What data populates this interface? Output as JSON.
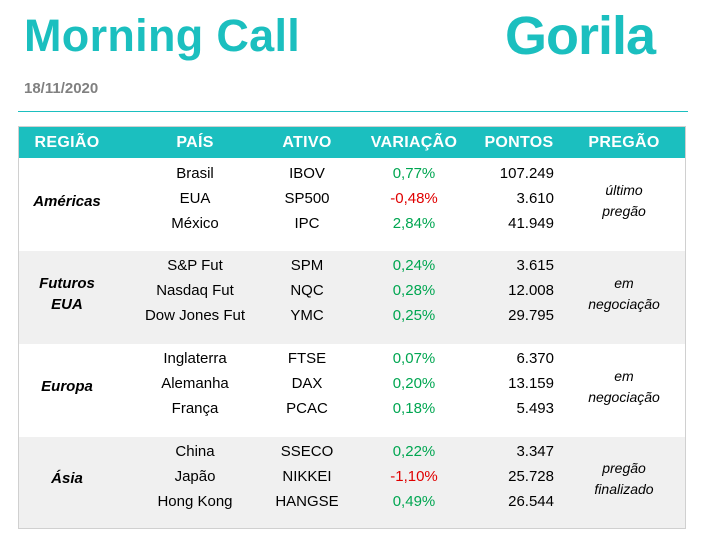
{
  "header": {
    "title": "Morning Call",
    "logo": "Gorila",
    "date": "18/11/2020"
  },
  "colors": {
    "accent": "#1bbfbf",
    "positive": "#00a651",
    "negative": "#e00000",
    "shade": "#f0f0f0"
  },
  "table": {
    "columns": [
      "REGIÃO",
      "PAÍS",
      "ATIVO",
      "VARIAÇÃO",
      "PONTOS",
      "PREGÃO"
    ],
    "groups": [
      {
        "region": [
          "Américas"
        ],
        "status": [
          "último",
          "pregão"
        ],
        "rows": [
          {
            "country": "Brasil",
            "asset": "IBOV",
            "variation": "0,77%",
            "points": "107.249",
            "sign": "pos"
          },
          {
            "country": "EUA",
            "asset": "SP500",
            "variation": "-0,48%",
            "points": "3.610",
            "sign": "neg"
          },
          {
            "country": "México",
            "asset": "IPC",
            "variation": "2,84%",
            "points": "41.949",
            "sign": "pos"
          }
        ]
      },
      {
        "region": [
          "Futuros",
          "EUA"
        ],
        "status": [
          "em",
          "negociação"
        ],
        "rows": [
          {
            "country": "S&P Fut",
            "asset": "SPM",
            "variation": "0,24%",
            "points": "3.615",
            "sign": "pos"
          },
          {
            "country": "Nasdaq Fut",
            "asset": "NQC",
            "variation": "0,28%",
            "points": "12.008",
            "sign": "pos"
          },
          {
            "country": "Dow Jones Fut",
            "asset": "YMC",
            "variation": "0,25%",
            "points": "29.795",
            "sign": "pos"
          }
        ]
      },
      {
        "region": [
          "Europa"
        ],
        "status": [
          "em",
          "negociação"
        ],
        "rows": [
          {
            "country": "Inglaterra",
            "asset": "FTSE",
            "variation": "0,07%",
            "points": "6.370",
            "sign": "pos"
          },
          {
            "country": "Alemanha",
            "asset": "DAX",
            "variation": "0,20%",
            "points": "13.159",
            "sign": "pos"
          },
          {
            "country": "França",
            "asset": "PCAC",
            "variation": "0,18%",
            "points": "5.493",
            "sign": "pos"
          }
        ]
      },
      {
        "region": [
          "Ásia"
        ],
        "status": [
          "pregão",
          "finalizado"
        ],
        "rows": [
          {
            "country": "China",
            "asset": "SSECO",
            "variation": "0,22%",
            "points": "3.347",
            "sign": "pos"
          },
          {
            "country": "Japão",
            "asset": "NIKKEI",
            "variation": "-1,10%",
            "points": "25.728",
            "sign": "neg"
          },
          {
            "country": "Hong Kong",
            "asset": "HANGSE",
            "variation": "0,49%",
            "points": "26.544",
            "sign": "pos"
          }
        ]
      }
    ]
  }
}
